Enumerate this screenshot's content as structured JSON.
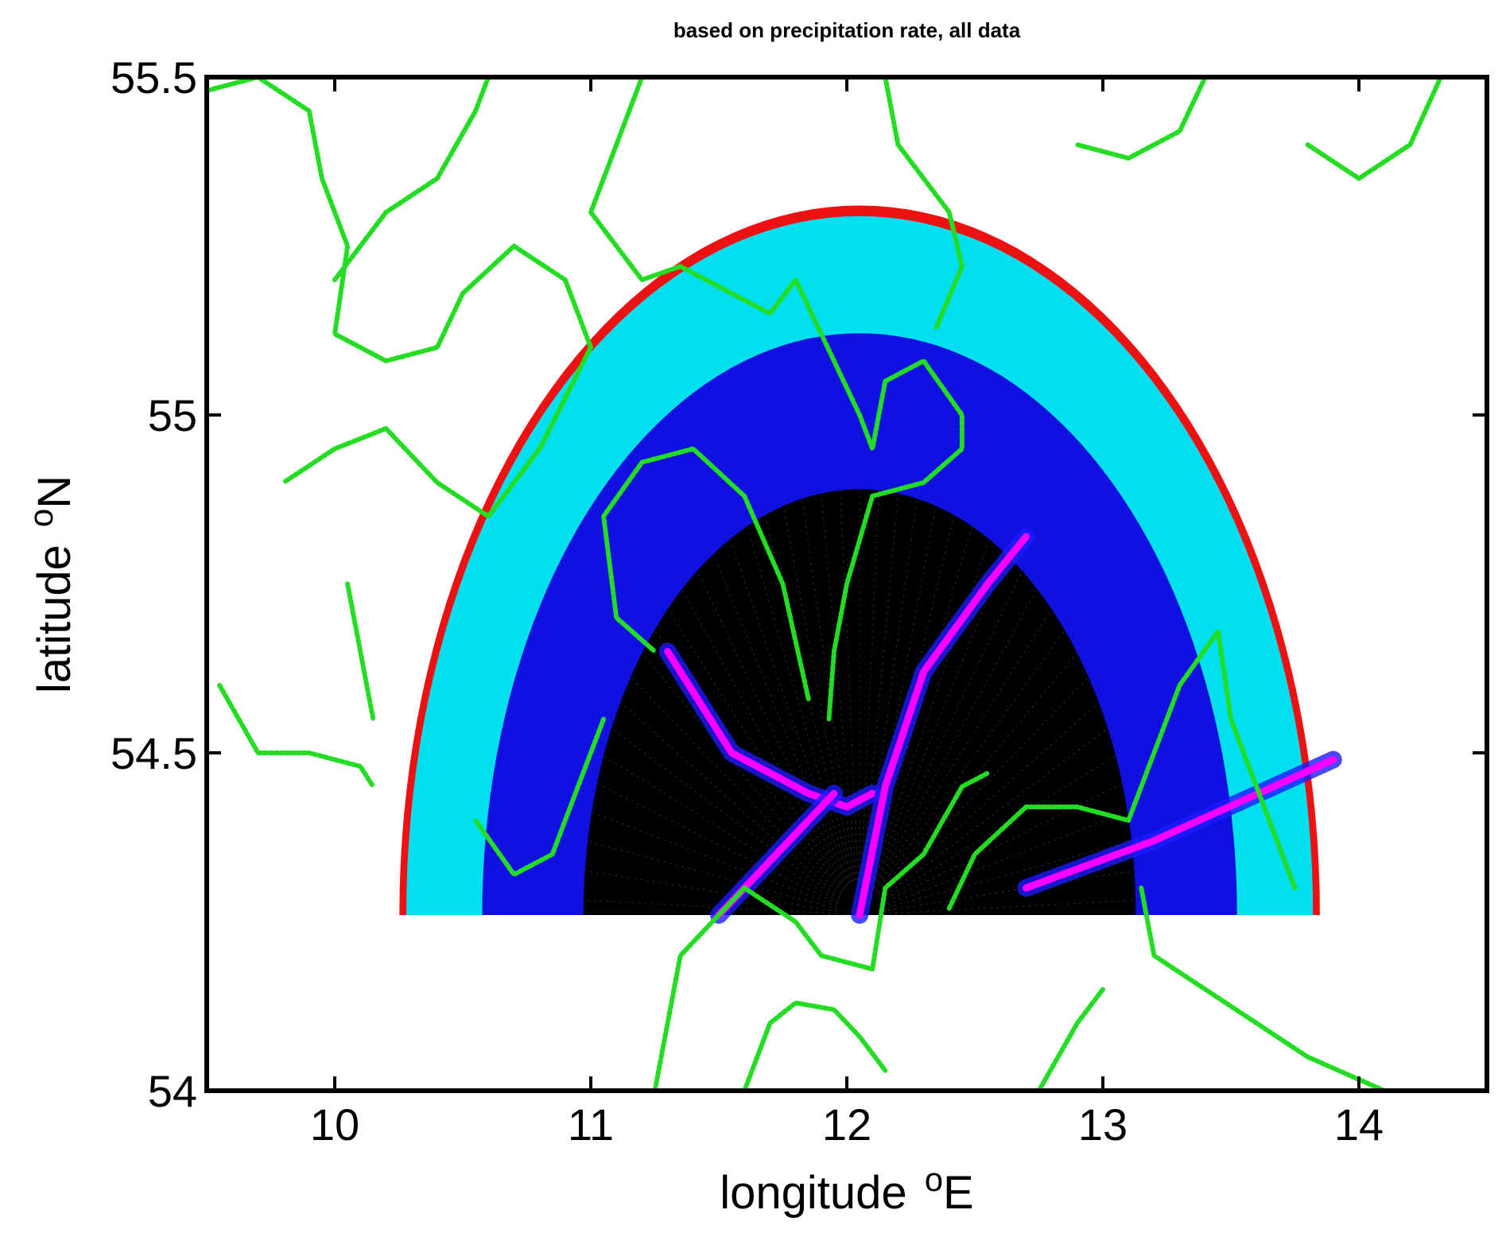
{
  "chart_data": {
    "type": "scatter",
    "title": "based on precipitation rate, all data",
    "xlabel": "longitude",
    "xlabel_sup": "o",
    "xlabel_suffix": "E",
    "ylabel": "latitude",
    "ylabel_sup": "o",
    "ylabel_suffix": "N",
    "xlim": [
      9.5,
      14.5
    ],
    "ylim": [
      54.0,
      55.5
    ],
    "x_ticks": [
      10,
      11,
      12,
      13,
      14
    ],
    "x_tick_labels": [
      "10",
      "11",
      "12",
      "13",
      "14"
    ],
    "y_ticks": [
      54.0,
      54.5,
      55.0,
      55.5
    ],
    "y_tick_labels": [
      "54",
      "54.5",
      "55",
      "55.5"
    ],
    "grid": false,
    "legend": "none",
    "radar": {
      "center": [
        12.05,
        54.26
      ],
      "max_range_lat_deg": 1.05,
      "azimuth_range_deg": [
        -90,
        90
      ]
    },
    "range_bands": [
      {
        "name": "black",
        "color": "#000000",
        "from_frac": 0.0,
        "to_frac": 0.6
      },
      {
        "name": "blue",
        "color": "#1010e0",
        "from_frac": 0.6,
        "to_frac": 0.82
      },
      {
        "name": "cyan",
        "color": "#00e0f0",
        "from_frac": 0.82,
        "to_frac": 0.985
      },
      {
        "name": "red",
        "color": "#ee1111",
        "from_frac": 0.985,
        "to_frac": 1.0
      }
    ],
    "ship_tracks": [
      {
        "color": "#ff00ff",
        "points": [
          [
            11.3,
            54.65
          ],
          [
            11.55,
            54.5
          ],
          [
            11.85,
            54.44
          ],
          [
            12.0,
            54.42
          ],
          [
            12.1,
            54.44
          ]
        ]
      },
      {
        "color": "#ff00ff",
        "points": [
          [
            12.05,
            54.26
          ],
          [
            12.15,
            54.45
          ],
          [
            12.3,
            54.62
          ],
          [
            12.55,
            54.75
          ],
          [
            12.7,
            54.82
          ]
        ]
      },
      {
        "color": "#ff00ff",
        "points": [
          [
            12.7,
            54.3
          ],
          [
            13.2,
            54.37
          ],
          [
            13.9,
            54.49
          ]
        ]
      },
      {
        "color": "#ff00ff",
        "points": [
          [
            11.5,
            54.26
          ],
          [
            11.8,
            54.38
          ],
          [
            11.95,
            54.44
          ]
        ]
      }
    ],
    "coastlines_color": "#22dd22",
    "coastlines": [
      [
        [
          9.5,
          55.48
        ],
        [
          9.7,
          55.5
        ],
        [
          9.9,
          55.45
        ],
        [
          9.95,
          55.35
        ],
        [
          10.05,
          55.25
        ],
        [
          10.0,
          55.12
        ],
        [
          10.2,
          55.08
        ],
        [
          10.4,
          55.1
        ],
        [
          10.5,
          55.18
        ],
        [
          10.7,
          55.25
        ],
        [
          10.9,
          55.2
        ],
        [
          11.0,
          55.1
        ],
        [
          10.8,
          54.95
        ],
        [
          10.6,
          54.85
        ],
        [
          10.4,
          54.9
        ],
        [
          10.2,
          54.98
        ],
        [
          10.0,
          54.95
        ],
        [
          9.8,
          54.9
        ]
      ],
      [
        [
          9.55,
          54.6
        ],
        [
          9.7,
          54.5
        ],
        [
          9.9,
          54.5
        ],
        [
          10.1,
          54.48
        ],
        [
          10.15,
          54.45
        ]
      ],
      [
        [
          10.05,
          54.75
        ],
        [
          10.1,
          54.65
        ],
        [
          10.15,
          54.55
        ]
      ],
      [
        [
          10.0,
          55.2
        ],
        [
          10.2,
          55.3
        ],
        [
          10.4,
          55.35
        ],
        [
          10.55,
          55.45
        ],
        [
          10.6,
          55.5
        ]
      ],
      [
        [
          11.2,
          55.5
        ],
        [
          11.1,
          55.4
        ],
        [
          11.0,
          55.3
        ],
        [
          11.2,
          55.2
        ],
        [
          11.35,
          55.22
        ],
        [
          11.55,
          55.18
        ],
        [
          11.7,
          55.15
        ],
        [
          11.8,
          55.2
        ],
        [
          11.9,
          55.12
        ],
        [
          12.05,
          55.0
        ],
        [
          12.1,
          54.95
        ],
        [
          12.15,
          55.05
        ],
        [
          12.3,
          55.08
        ],
        [
          12.45,
          55.0
        ],
        [
          12.45,
          54.95
        ],
        [
          12.3,
          54.9
        ],
        [
          12.1,
          54.88
        ],
        [
          12.0,
          54.75
        ],
        [
          11.95,
          54.65
        ],
        [
          11.93,
          54.55
        ]
      ],
      [
        [
          11.85,
          54.58
        ],
        [
          11.75,
          54.75
        ],
        [
          11.6,
          54.88
        ],
        [
          11.4,
          54.95
        ],
        [
          11.2,
          54.93
        ],
        [
          11.05,
          54.85
        ],
        [
          11.1,
          54.7
        ],
        [
          11.25,
          54.65
        ]
      ],
      [
        [
          11.05,
          54.55
        ],
        [
          10.95,
          54.45
        ],
        [
          10.85,
          54.35
        ],
        [
          10.7,
          54.32
        ],
        [
          10.55,
          54.4
        ]
      ],
      [
        [
          12.15,
          55.5
        ],
        [
          12.2,
          55.4
        ],
        [
          12.4,
          55.3
        ],
        [
          12.45,
          55.22
        ],
        [
          12.35,
          55.13
        ]
      ],
      [
        [
          13.8,
          55.4
        ],
        [
          14.0,
          55.35
        ],
        [
          14.2,
          55.4
        ],
        [
          14.32,
          55.5
        ]
      ],
      [
        [
          13.4,
          55.5
        ],
        [
          13.3,
          55.42
        ],
        [
          13.1,
          55.38
        ],
        [
          12.9,
          55.4
        ]
      ],
      [
        [
          11.25,
          54.0
        ],
        [
          11.3,
          54.1
        ],
        [
          11.35,
          54.2
        ],
        [
          11.5,
          54.26
        ],
        [
          11.6,
          54.3
        ],
        [
          11.8,
          54.25
        ],
        [
          11.9,
          54.2
        ],
        [
          12.1,
          54.18
        ],
        [
          12.15,
          54.3
        ],
        [
          12.3,
          54.35
        ],
        [
          12.45,
          54.45
        ],
        [
          12.55,
          54.47
        ]
      ],
      [
        [
          11.6,
          54.0
        ],
        [
          11.7,
          54.1
        ],
        [
          11.8,
          54.13
        ],
        [
          11.95,
          54.12
        ],
        [
          12.05,
          54.08
        ],
        [
          12.15,
          54.03
        ]
      ],
      [
        [
          12.4,
          54.27
        ],
        [
          12.5,
          54.35
        ],
        [
          12.7,
          54.42
        ],
        [
          12.9,
          54.42
        ],
        [
          13.1,
          54.4
        ],
        [
          13.2,
          54.5
        ],
        [
          13.3,
          54.6
        ],
        [
          13.45,
          54.68
        ],
        [
          13.5,
          54.55
        ],
        [
          13.6,
          54.45
        ],
        [
          13.7,
          54.35
        ],
        [
          13.75,
          54.3
        ]
      ],
      [
        [
          13.15,
          54.3
        ],
        [
          13.2,
          54.2
        ],
        [
          13.4,
          54.15
        ],
        [
          13.6,
          54.1
        ],
        [
          13.8,
          54.05
        ],
        [
          14.1,
          54.0
        ]
      ],
      [
        [
          12.75,
          54.0
        ],
        [
          12.9,
          54.1
        ],
        [
          13.0,
          54.15
        ]
      ]
    ]
  }
}
